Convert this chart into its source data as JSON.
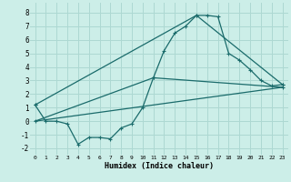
{
  "xlabel": "Humidex (Indice chaleur)",
  "bg_color": "#cceee8",
  "grid_color": "#add8d2",
  "line_color": "#1a6b6b",
  "xlim": [
    -0.5,
    23.5
  ],
  "ylim": [
    -2.5,
    8.7
  ],
  "xticks": [
    0,
    1,
    2,
    3,
    4,
    5,
    6,
    7,
    8,
    9,
    10,
    11,
    12,
    13,
    14,
    15,
    16,
    17,
    18,
    19,
    20,
    21,
    22,
    23
  ],
  "yticks": [
    -2,
    -1,
    0,
    1,
    2,
    3,
    4,
    5,
    6,
    7,
    8
  ],
  "series1_x": [
    0,
    1,
    2,
    3,
    4,
    5,
    6,
    7,
    8,
    9,
    10,
    11,
    12,
    13,
    14,
    15,
    16,
    17,
    18,
    19,
    20,
    21,
    22,
    23
  ],
  "series1_y": [
    1.2,
    0.0,
    0.0,
    -0.2,
    -1.7,
    -1.2,
    -1.2,
    -1.3,
    -0.5,
    -0.2,
    1.0,
    3.2,
    5.2,
    6.5,
    7.0,
    7.8,
    7.8,
    7.7,
    5.0,
    4.5,
    3.8,
    3.0,
    2.6,
    2.7
  ],
  "series2_x": [
    0,
    15,
    23
  ],
  "series2_y": [
    1.2,
    7.8,
    2.7
  ],
  "series3_x": [
    0,
    11,
    23
  ],
  "series3_y": [
    0.0,
    3.2,
    2.5
  ],
  "series4_x": [
    0,
    23
  ],
  "series4_y": [
    0.0,
    2.5
  ]
}
